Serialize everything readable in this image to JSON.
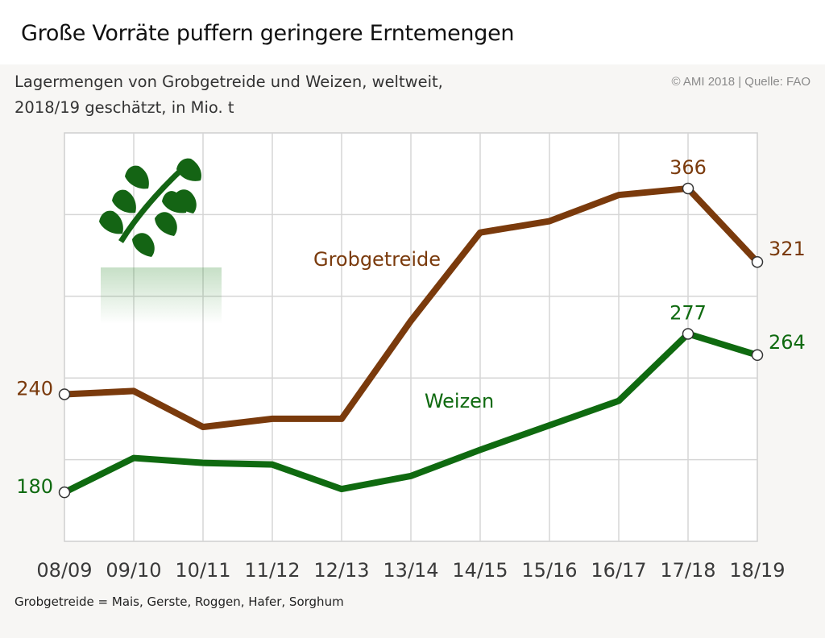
{
  "header": {
    "title": "Große Vorräte puffern geringere Erntemengen",
    "subtitle_line1": "Lagermengen von Grobgetreide und Weizen, weltweit,",
    "subtitle_line2": "2018/19 geschätzt, in Mio. t",
    "source": "© AMI 2018 | Quelle: FAO"
  },
  "footnote": "Grobgetreide = Mais, Gerste, Roggen, Hafer, Sorghum",
  "icons": {
    "logo": "wheat-ear-icon"
  },
  "chart_data": {
    "type": "line",
    "categories": [
      "08/09",
      "09/10",
      "10/11",
      "11/12",
      "12/13",
      "13/14",
      "14/15",
      "15/16",
      "16/17",
      "17/18",
      "18/19"
    ],
    "ylim": [
      150,
      400
    ],
    "grid": true,
    "series": [
      {
        "name": "Grobgetreide",
        "color": "#7a3a0c",
        "values": [
          240,
          242,
          220,
          225,
          225,
          285,
          339,
          346,
          362,
          366,
          321
        ],
        "labels": [
          {
            "index": 0,
            "text": "240",
            "position": "left"
          },
          {
            "index": 9,
            "text": "366",
            "position": "above"
          },
          {
            "index": 10,
            "text": "321",
            "position": "right"
          }
        ],
        "marked_points": [
          0,
          9,
          10
        ]
      },
      {
        "name": "Weizen",
        "color": "#0f6a10",
        "values": [
          180,
          201,
          198,
          197,
          182,
          190,
          206,
          221,
          236,
          277,
          264
        ],
        "labels": [
          {
            "index": 0,
            "text": "180",
            "position": "left"
          },
          {
            "index": 9,
            "text": "277",
            "position": "above"
          },
          {
            "index": 10,
            "text": "264",
            "position": "right"
          }
        ],
        "marked_points": [
          0,
          9,
          10
        ]
      }
    ]
  }
}
